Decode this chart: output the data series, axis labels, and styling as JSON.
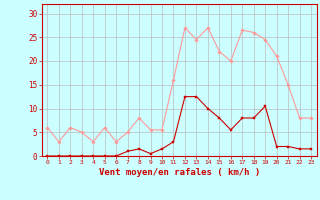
{
  "hours": [
    0,
    1,
    2,
    3,
    4,
    5,
    6,
    7,
    8,
    9,
    10,
    11,
    12,
    13,
    14,
    15,
    16,
    17,
    18,
    19,
    20,
    21,
    22,
    23
  ],
  "vent_moyen": [
    0,
    0,
    0,
    0,
    0,
    0,
    0,
    1,
    1.5,
    0.5,
    1.5,
    3,
    12.5,
    12.5,
    10,
    8,
    5.5,
    8,
    8,
    10.5,
    2,
    2,
    1.5,
    1.5
  ],
  "rafales": [
    6,
    3,
    6,
    5,
    3,
    6,
    3,
    5,
    8,
    5.5,
    5.5,
    16,
    27,
    24.5,
    27,
    22,
    20,
    26.5,
    26,
    24.5,
    21,
    15,
    8,
    8
  ],
  "color_moyen": "#cc0000",
  "color_rafales": "#ff9999",
  "bg_color": "#ccffff",
  "grid_color": "#bbbbbb",
  "xlabel": "Vent moyen/en rafales ( km/h )",
  "yticks": [
    0,
    5,
    10,
    15,
    20,
    25,
    30
  ],
  "ylim": [
    0,
    32
  ],
  "xlim": [
    -0.5,
    23.5
  ]
}
